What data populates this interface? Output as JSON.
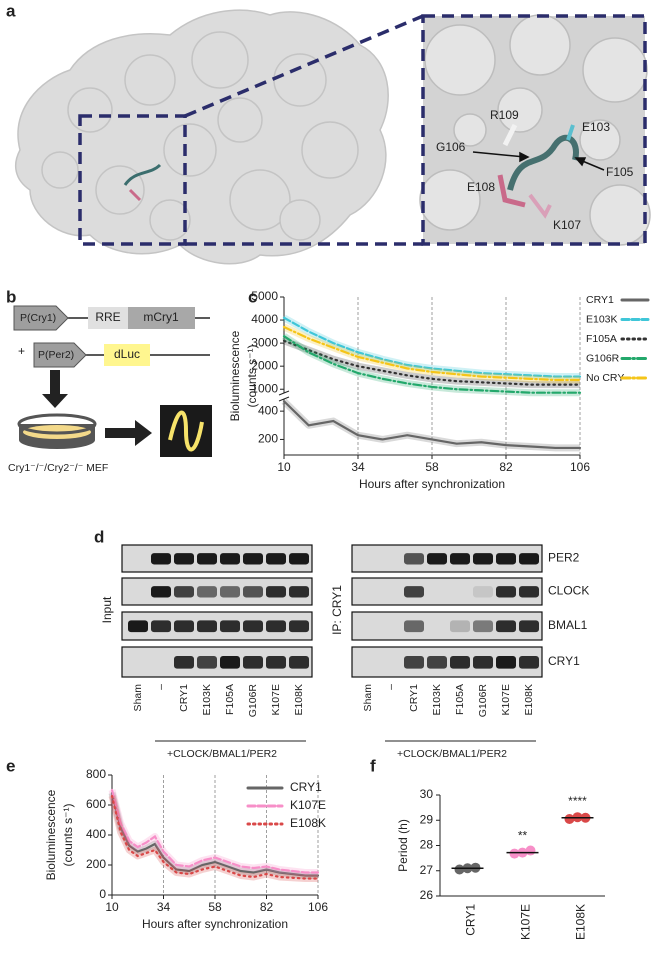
{
  "panel_labels": [
    "a",
    "b",
    "c",
    "d",
    "e",
    "f"
  ],
  "panel_a": {
    "residues": [
      "R109",
      "G106",
      "E103",
      "E108",
      "F105",
      "K107"
    ]
  },
  "panel_b": {
    "promoter_1": "P(Cry1)",
    "element": "RRE",
    "gene": "mCry1",
    "plus": "+",
    "promoter_2": "P(Per2)",
    "reporter": "dLuc",
    "cells": "Cry1⁻/⁻/Cry2⁻/⁻ MEF"
  },
  "panel_d": {
    "input_label": "Input",
    "ip_label": "IP: CRY1",
    "proteins": [
      "PER2",
      "CLOCK",
      "BMAL1",
      "CRY1"
    ],
    "lanes": [
      "Sham",
      "–",
      "CRY1",
      "E103K",
      "F105A",
      "G106R",
      "K107E",
      "E108K"
    ],
    "cotransfection": "+CLOCK/BMAL1/PER2"
  },
  "chart_data": [
    {
      "type": "line",
      "y_label": [
        "Bioluminescence",
        "(counts s⁻¹)"
      ],
      "x_label": "Hours after synchronization",
      "x": [
        10,
        18,
        26,
        34,
        42,
        50,
        58,
        66,
        74,
        82,
        90,
        98,
        106
      ],
      "xlim": [
        10,
        106
      ],
      "xticks": [
        10,
        34,
        58,
        82,
        106
      ],
      "grid_x": true,
      "ylim_segments": [
        [
          90,
          500
        ],
        [
          750,
          5000
        ]
      ],
      "yticks": [
        200,
        400,
        1000,
        2000,
        3000,
        4000,
        5000
      ],
      "series": [
        {
          "name": "CRY1",
          "color": "#666666",
          "style": "solid",
          "values": [
            470,
            300,
            330,
            230,
            200,
            230,
            200,
            170,
            180,
            160,
            150,
            140,
            140
          ]
        },
        {
          "name": "E103K",
          "color": "#3fc6d8",
          "style": "dashed",
          "values": [
            4100,
            3500,
            3000,
            2600,
            2300,
            2050,
            1900,
            1800,
            1700,
            1650,
            1600,
            1550,
            1550
          ]
        },
        {
          "name": "F105A",
          "color": "#333333",
          "style": "dotted",
          "values": [
            3100,
            2700,
            2300,
            2000,
            1800,
            1600,
            1450,
            1350,
            1300,
            1250,
            1200,
            1200,
            1200
          ]
        },
        {
          "name": "G106R",
          "color": "#23a86b",
          "style": "dashdot",
          "values": [
            3300,
            2600,
            2100,
            1700,
            1450,
            1250,
            1100,
            1000,
            950,
            900,
            850,
            850,
            850
          ]
        },
        {
          "name": "No CRY",
          "color": "#f5c518",
          "style": "dashdot",
          "values": [
            3700,
            3200,
            2800,
            2400,
            2150,
            1900,
            1750,
            1650,
            1550,
            1500,
            1450,
            1400,
            1400
          ]
        }
      ]
    },
    {
      "type": "line",
      "y_label": [
        "Bioluminescence",
        "(counts s⁻¹)"
      ],
      "x_label": "Hours after synchronization",
      "x": [
        10,
        14,
        18,
        22,
        26,
        30,
        34,
        40,
        46,
        52,
        58,
        64,
        70,
        76,
        82,
        88,
        94,
        100,
        106
      ],
      "xlim": [
        10,
        106
      ],
      "xticks": [
        10,
        34,
        58,
        82,
        106
      ],
      "grid_x": true,
      "ylim": [
        0,
        800
      ],
      "yticks": [
        0,
        200,
        400,
        600,
        800
      ],
      "series": [
        {
          "name": "CRY1",
          "color": "#666666",
          "style": "solid",
          "values": [
            680,
            450,
            330,
            290,
            310,
            340,
            250,
            170,
            160,
            200,
            220,
            190,
            160,
            150,
            170,
            150,
            140,
            130,
            130
          ]
        },
        {
          "name": "K107E",
          "color": "#f78fc8",
          "style": "dashed",
          "values": [
            700,
            480,
            360,
            320,
            350,
            390,
            290,
            200,
            190,
            230,
            250,
            220,
            190,
            180,
            190,
            170,
            160,
            150,
            150
          ]
        },
        {
          "name": "E108K",
          "color": "#d94848",
          "style": "dotted",
          "values": [
            660,
            420,
            300,
            260,
            280,
            300,
            220,
            150,
            140,
            170,
            190,
            160,
            130,
            120,
            140,
            120,
            115,
            110,
            110
          ]
        }
      ]
    },
    {
      "type": "dot",
      "y_label": "Period (h)",
      "categories": [
        "CRY1",
        "K107E",
        "E108K"
      ],
      "values": [
        [
          27.05,
          27.1,
          27.12
        ],
        [
          27.68,
          27.72,
          27.8
        ],
        [
          29.05,
          29.12,
          29.1
        ]
      ],
      "means": [
        27.1,
        27.72,
        29.1
      ],
      "colors": [
        "#666666",
        "#f78fc8",
        "#d94848"
      ],
      "significance": [
        null,
        "**",
        "****"
      ],
      "ylim": [
        26,
        30
      ],
      "yticks": [
        26,
        27,
        28,
        29,
        30
      ]
    }
  ]
}
